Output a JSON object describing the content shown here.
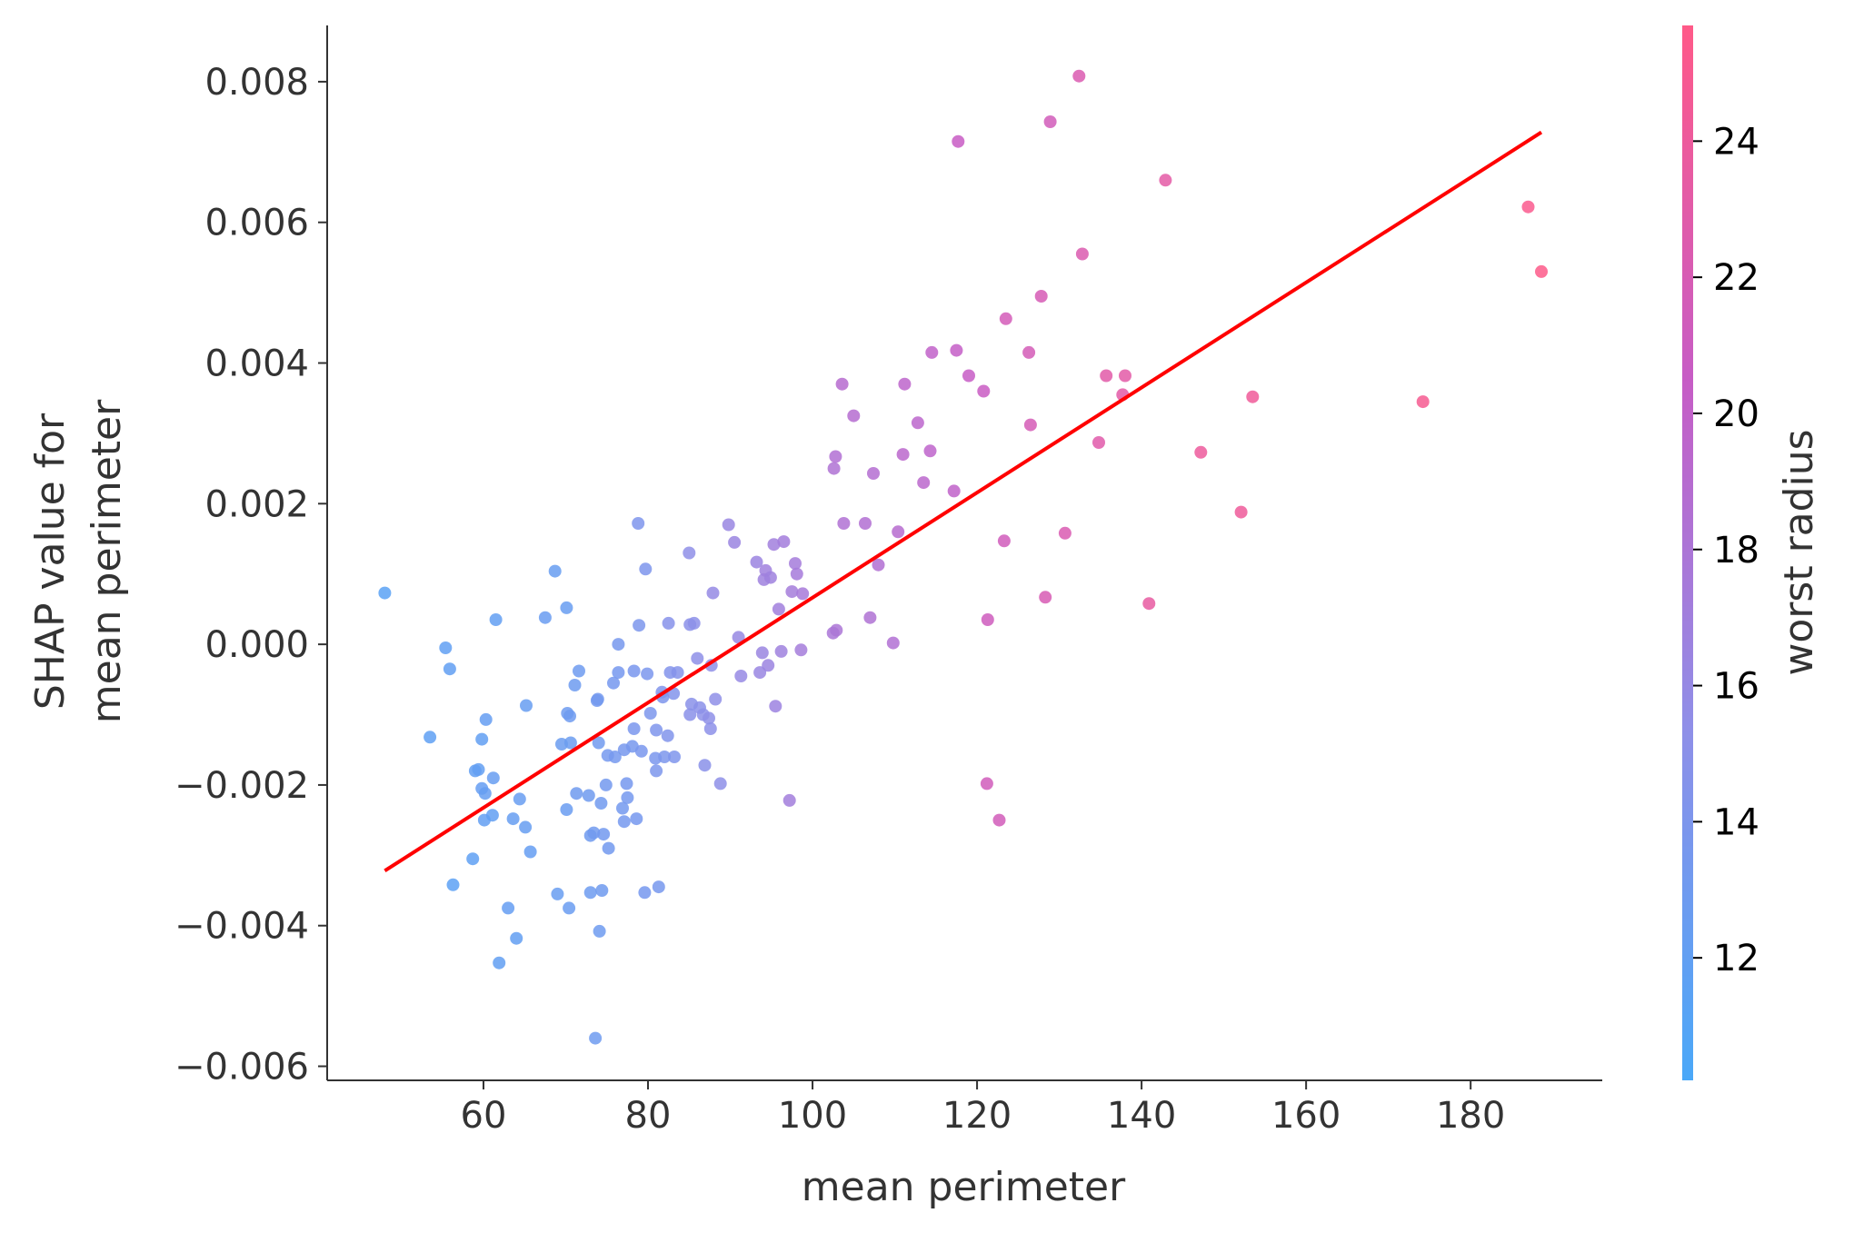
{
  "chart_data": {
    "type": "scatter",
    "xlabel": "mean perimeter",
    "ylabel_lines": [
      "SHAP value for",
      "mean perimeter"
    ],
    "xlim": [
      41,
      196
    ],
    "ylim": [
      -0.0062,
      0.0088
    ],
    "xticks": [
      60,
      80,
      100,
      120,
      140,
      160,
      180
    ],
    "xtick_labels": [
      "60",
      "80",
      "100",
      "120",
      "140",
      "160",
      "180"
    ],
    "yticks": [
      -0.006,
      -0.004,
      -0.002,
      0.0,
      0.002,
      0.004,
      0.006,
      0.008
    ],
    "ytick_labels": [
      "−0.006",
      "−0.004",
      "−0.002",
      "0.000",
      "0.002",
      "0.004",
      "0.006",
      "0.008"
    ],
    "grid": false,
    "colorbar": {
      "label": "worst radius",
      "range": [
        10.2,
        25.7
      ],
      "ticks": [
        12,
        14,
        16,
        18,
        20,
        22,
        24
      ],
      "tick_labels": [
        "12",
        "14",
        "16",
        "18",
        "20",
        "22",
        "24"
      ],
      "colors": [
        "#4aa8f8",
        "#8f8fe8",
        "#c75cc5",
        "#ff5a88"
      ]
    },
    "trend_line": {
      "x": [
        48,
        188.6
      ],
      "y": [
        -0.00322,
        0.00728
      ],
      "color": "#ff0000"
    },
    "points": [
      {
        "x": 48.0,
        "y": 0.00073,
        "c": 11.5
      },
      {
        "x": 53.5,
        "y": -0.00132,
        "c": 11.8
      },
      {
        "x": 55.4,
        "y": -5e-05,
        "c": 11.9
      },
      {
        "x": 55.9,
        "y": -0.00035,
        "c": 12.0
      },
      {
        "x": 56.3,
        "y": -0.00342,
        "c": 11.6
      },
      {
        "x": 58.7,
        "y": -0.00305,
        "c": 11.8
      },
      {
        "x": 59.0,
        "y": -0.0018,
        "c": 12.0
      },
      {
        "x": 59.4,
        "y": -0.00178,
        "c": 12.1
      },
      {
        "x": 59.8,
        "y": -0.00135,
        "c": 12.0
      },
      {
        "x": 59.8,
        "y": -0.00205,
        "c": 12.2
      },
      {
        "x": 60.2,
        "y": -0.00212,
        "c": 12.3
      },
      {
        "x": 60.1,
        "y": -0.0025,
        "c": 12.1
      },
      {
        "x": 60.3,
        "y": -0.00107,
        "c": 12.2
      },
      {
        "x": 61.1,
        "y": -0.00243,
        "c": 12.0
      },
      {
        "x": 61.2,
        "y": -0.0019,
        "c": 12.4
      },
      {
        "x": 61.5,
        "y": 0.00035,
        "c": 12.1
      },
      {
        "x": 61.9,
        "y": -0.00453,
        "c": 12.0
      },
      {
        "x": 63.0,
        "y": -0.00375,
        "c": 12.2
      },
      {
        "x": 63.6,
        "y": -0.00248,
        "c": 12.3
      },
      {
        "x": 64.0,
        "y": -0.00418,
        "c": 12.1
      },
      {
        "x": 64.4,
        "y": -0.0022,
        "c": 12.5
      },
      {
        "x": 65.1,
        "y": -0.0026,
        "c": 12.3
      },
      {
        "x": 65.2,
        "y": -0.00087,
        "c": 12.4
      },
      {
        "x": 65.7,
        "y": -0.00295,
        "c": 12.2
      },
      {
        "x": 67.5,
        "y": 0.00038,
        "c": 12.6
      },
      {
        "x": 68.7,
        "y": 0.00104,
        "c": 12.4
      },
      {
        "x": 69.0,
        "y": -0.00355,
        "c": 12.5
      },
      {
        "x": 69.5,
        "y": -0.00142,
        "c": 12.7
      },
      {
        "x": 70.1,
        "y": -0.00235,
        "c": 12.6
      },
      {
        "x": 70.1,
        "y": 0.00052,
        "c": 12.5
      },
      {
        "x": 70.2,
        "y": -0.00098,
        "c": 12.8
      },
      {
        "x": 70.4,
        "y": -0.00375,
        "c": 12.6
      },
      {
        "x": 70.5,
        "y": -0.00102,
        "c": 12.9
      },
      {
        "x": 70.6,
        "y": -0.0014,
        "c": 12.7
      },
      {
        "x": 71.1,
        "y": -0.00058,
        "c": 12.8
      },
      {
        "x": 71.3,
        "y": -0.00212,
        "c": 13.0
      },
      {
        "x": 71.6,
        "y": -0.00038,
        "c": 12.9
      },
      {
        "x": 72.8,
        "y": -0.00215,
        "c": 13.0
      },
      {
        "x": 73.0,
        "y": -0.00353,
        "c": 12.8
      },
      {
        "x": 73.0,
        "y": -0.00272,
        "c": 13.0
      },
      {
        "x": 73.4,
        "y": -0.00268,
        "c": 13.1
      },
      {
        "x": 73.6,
        "y": -0.0056,
        "c": 12.9
      },
      {
        "x": 73.8,
        "y": -0.0008,
        "c": 13.2
      },
      {
        "x": 73.9,
        "y": -0.00078,
        "c": 13.3
      },
      {
        "x": 74.0,
        "y": -0.0014,
        "c": 13.1
      },
      {
        "x": 74.1,
        "y": -0.00408,
        "c": 12.9
      },
      {
        "x": 74.3,
        "y": -0.00226,
        "c": 13.1
      },
      {
        "x": 74.4,
        "y": -0.0035,
        "c": 13.0
      },
      {
        "x": 74.6,
        "y": -0.0027,
        "c": 13.2
      },
      {
        "x": 74.9,
        "y": -0.002,
        "c": 13.3
      },
      {
        "x": 75.1,
        "y": -0.00158,
        "c": 13.4
      },
      {
        "x": 75.2,
        "y": -0.0029,
        "c": 13.2
      },
      {
        "x": 75.8,
        "y": -0.00055,
        "c": 13.5
      },
      {
        "x": 76.0,
        "y": -0.0016,
        "c": 13.4
      },
      {
        "x": 76.4,
        "y": 0.0,
        "c": 13.6
      },
      {
        "x": 76.4,
        "y": -0.0004,
        "c": 13.5
      },
      {
        "x": 76.9,
        "y": -0.00233,
        "c": 13.3
      },
      {
        "x": 77.1,
        "y": -0.00252,
        "c": 13.4
      },
      {
        "x": 77.1,
        "y": -0.0015,
        "c": 13.6
      },
      {
        "x": 77.4,
        "y": -0.00198,
        "c": 13.5
      },
      {
        "x": 77.5,
        "y": -0.00218,
        "c": 13.4
      },
      {
        "x": 78.1,
        "y": -0.00145,
        "c": 13.6
      },
      {
        "x": 78.3,
        "y": -0.00038,
        "c": 13.7
      },
      {
        "x": 78.3,
        "y": -0.0012,
        "c": 13.8
      },
      {
        "x": 78.6,
        "y": -0.00248,
        "c": 13.5
      },
      {
        "x": 78.8,
        "y": 0.00172,
        "c": 14.2
      },
      {
        "x": 78.9,
        "y": 0.00027,
        "c": 14.0
      },
      {
        "x": 79.2,
        "y": -0.00152,
        "c": 13.7
      },
      {
        "x": 79.6,
        "y": -0.00353,
        "c": 13.5
      },
      {
        "x": 79.7,
        "y": 0.00107,
        "c": 14.1
      },
      {
        "x": 79.9,
        "y": -0.00042,
        "c": 13.9
      },
      {
        "x": 80.3,
        "y": -0.00098,
        "c": 14.0
      },
      {
        "x": 80.9,
        "y": -0.00162,
        "c": 13.8
      },
      {
        "x": 81.0,
        "y": -0.00122,
        "c": 14.2
      },
      {
        "x": 81.0,
        "y": -0.0018,
        "c": 14.0
      },
      {
        "x": 81.3,
        "y": -0.00345,
        "c": 13.6
      },
      {
        "x": 81.7,
        "y": -0.00068,
        "c": 14.3
      },
      {
        "x": 81.8,
        "y": -0.00075,
        "c": 14.1
      },
      {
        "x": 82.0,
        "y": -0.0016,
        "c": 14.0
      },
      {
        "x": 82.4,
        "y": -0.0013,
        "c": 14.3
      },
      {
        "x": 82.5,
        "y": 0.0003,
        "c": 14.8
      },
      {
        "x": 82.7,
        "y": -0.0004,
        "c": 14.5
      },
      {
        "x": 83.1,
        "y": -0.0007,
        "c": 14.4
      },
      {
        "x": 83.2,
        "y": -0.0016,
        "c": 14.2
      },
      {
        "x": 83.6,
        "y": -0.0004,
        "c": 14.6
      },
      {
        "x": 85.0,
        "y": 0.0013,
        "c": 15.4
      },
      {
        "x": 85.1,
        "y": -0.001,
        "c": 14.9
      },
      {
        "x": 85.1,
        "y": 0.00028,
        "c": 15.1
      },
      {
        "x": 85.3,
        "y": -0.00085,
        "c": 15.0
      },
      {
        "x": 85.6,
        "y": 0.0003,
        "c": 15.2
      },
      {
        "x": 86.0,
        "y": -0.0002,
        "c": 15.3
      },
      {
        "x": 86.3,
        "y": -0.0009,
        "c": 15.1
      },
      {
        "x": 86.7,
        "y": -0.001,
        "c": 15.2
      },
      {
        "x": 86.9,
        "y": -0.00172,
        "c": 14.9
      },
      {
        "x": 87.4,
        "y": -0.00105,
        "c": 15.3
      },
      {
        "x": 87.6,
        "y": -0.0012,
        "c": 15.2
      },
      {
        "x": 87.7,
        "y": -0.0003,
        "c": 15.4
      },
      {
        "x": 87.9,
        "y": 0.00073,
        "c": 15.9
      },
      {
        "x": 88.2,
        "y": -0.00078,
        "c": 15.4
      },
      {
        "x": 88.8,
        "y": -0.00198,
        "c": 15.3
      },
      {
        "x": 89.8,
        "y": 0.0017,
        "c": 16.3
      },
      {
        "x": 90.5,
        "y": 0.00145,
        "c": 16.4
      },
      {
        "x": 91.0,
        "y": 0.0001,
        "c": 16.1
      },
      {
        "x": 91.3,
        "y": -0.00045,
        "c": 16.0
      },
      {
        "x": 93.2,
        "y": 0.00117,
        "c": 16.5
      },
      {
        "x": 93.6,
        "y": -0.0004,
        "c": 16.3
      },
      {
        "x": 93.9,
        "y": -0.00012,
        "c": 16.4
      },
      {
        "x": 94.1,
        "y": 0.00092,
        "c": 16.8
      },
      {
        "x": 94.3,
        "y": 0.00105,
        "c": 16.9
      },
      {
        "x": 94.6,
        "y": -0.0003,
        "c": 16.5
      },
      {
        "x": 94.9,
        "y": 0.00095,
        "c": 16.8
      },
      {
        "x": 95.3,
        "y": 0.00142,
        "c": 17.0
      },
      {
        "x": 95.5,
        "y": -0.00088,
        "c": 16.6
      },
      {
        "x": 95.9,
        "y": 0.0005,
        "c": 17.0
      },
      {
        "x": 96.2,
        "y": -0.0001,
        "c": 16.8
      },
      {
        "x": 96.5,
        "y": 0.00146,
        "c": 17.2
      },
      {
        "x": 97.2,
        "y": -0.00222,
        "c": 17.1
      },
      {
        "x": 97.5,
        "y": 0.00075,
        "c": 17.3
      },
      {
        "x": 97.9,
        "y": 0.00115,
        "c": 17.4
      },
      {
        "x": 98.1,
        "y": 0.001,
        "c": 17.5
      },
      {
        "x": 98.6,
        "y": -8e-05,
        "c": 17.3
      },
      {
        "x": 98.8,
        "y": 0.00072,
        "c": 17.6
      },
      {
        "x": 102.5,
        "y": 0.00016,
        "c": 17.9
      },
      {
        "x": 102.6,
        "y": 0.0025,
        "c": 18.3
      },
      {
        "x": 102.8,
        "y": 0.00267,
        "c": 18.5
      },
      {
        "x": 102.9,
        "y": 0.0002,
        "c": 18.0
      },
      {
        "x": 103.6,
        "y": 0.0037,
        "c": 19.0
      },
      {
        "x": 103.8,
        "y": 0.00172,
        "c": 18.4
      },
      {
        "x": 105.0,
        "y": 0.00325,
        "c": 18.9
      },
      {
        "x": 106.4,
        "y": 0.00172,
        "c": 18.6
      },
      {
        "x": 107.0,
        "y": 0.00038,
        "c": 18.3
      },
      {
        "x": 107.4,
        "y": 0.00243,
        "c": 18.8
      },
      {
        "x": 108.0,
        "y": 0.00113,
        "c": 18.6
      },
      {
        "x": 109.8,
        "y": 2e-05,
        "c": 18.5
      },
      {
        "x": 110.4,
        "y": 0.0016,
        "c": 19.0
      },
      {
        "x": 111.0,
        "y": 0.0027,
        "c": 19.4
      },
      {
        "x": 111.2,
        "y": 0.0037,
        "c": 19.6
      },
      {
        "x": 112.8,
        "y": 0.00315,
        "c": 19.5
      },
      {
        "x": 113.5,
        "y": 0.0023,
        "c": 19.4
      },
      {
        "x": 114.3,
        "y": 0.00275,
        "c": 19.7
      },
      {
        "x": 114.5,
        "y": 0.00415,
        "c": 20.0
      },
      {
        "x": 117.2,
        "y": 0.00218,
        "c": 19.9
      },
      {
        "x": 117.5,
        "y": 0.00418,
        "c": 20.3
      },
      {
        "x": 117.7,
        "y": 0.00715,
        "c": 20.6
      },
      {
        "x": 119.0,
        "y": 0.00382,
        "c": 20.5
      },
      {
        "x": 120.8,
        "y": 0.0036,
        "c": 20.7
      },
      {
        "x": 121.2,
        "y": -0.00198,
        "c": 21.4
      },
      {
        "x": 121.3,
        "y": 0.00035,
        "c": 21.2
      },
      {
        "x": 122.7,
        "y": -0.0025,
        "c": 21.5
      },
      {
        "x": 123.3,
        "y": 0.00147,
        "c": 21.4
      },
      {
        "x": 123.5,
        "y": 0.00463,
        "c": 21.6
      },
      {
        "x": 126.3,
        "y": 0.00415,
        "c": 21.7
      },
      {
        "x": 126.5,
        "y": 0.00312,
        "c": 21.8
      },
      {
        "x": 127.8,
        "y": 0.00495,
        "c": 21.9
      },
      {
        "x": 128.3,
        "y": 0.00067,
        "c": 22.0
      },
      {
        "x": 128.9,
        "y": 0.00743,
        "c": 21.5
      },
      {
        "x": 130.7,
        "y": 0.00158,
        "c": 22.2
      },
      {
        "x": 132.4,
        "y": 0.00808,
        "c": 22.3
      },
      {
        "x": 132.8,
        "y": 0.00555,
        "c": 22.4
      },
      {
        "x": 134.8,
        "y": 0.00287,
        "c": 22.8
      },
      {
        "x": 135.7,
        "y": 0.00382,
        "c": 23.0
      },
      {
        "x": 137.7,
        "y": 0.00355,
        "c": 23.1
      },
      {
        "x": 138.0,
        "y": 0.00382,
        "c": 23.1
      },
      {
        "x": 140.9,
        "y": 0.00058,
        "c": 23.6
      },
      {
        "x": 142.9,
        "y": 0.0066,
        "c": 23.2
      },
      {
        "x": 147.2,
        "y": 0.00273,
        "c": 24.0
      },
      {
        "x": 152.1,
        "y": 0.00188,
        "c": 24.2
      },
      {
        "x": 153.5,
        "y": 0.00352,
        "c": 24.3
      },
      {
        "x": 174.2,
        "y": 0.00345,
        "c": 24.9
      },
      {
        "x": 187.0,
        "y": 0.00622,
        "c": 25.2
      },
      {
        "x": 188.6,
        "y": 0.0053,
        "c": 25.5
      }
    ]
  }
}
